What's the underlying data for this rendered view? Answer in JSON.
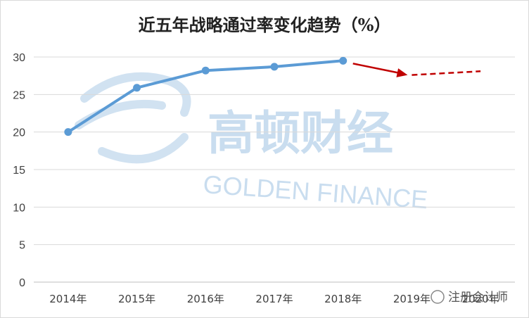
{
  "chart_data": {
    "type": "line",
    "title": "近五年战略通过率变化趋势（%）",
    "categories": [
      "2014年",
      "2015年",
      "2016年",
      "2017年",
      "2018年",
      "2019年",
      "2020年"
    ],
    "series": [
      {
        "values": [
          20,
          25.9,
          28.2,
          28.7,
          29.5,
          null,
          null
        ],
        "color": "#5b9bd5"
      },
      {
        "values": [
          null,
          null,
          null,
          null,
          null,
          27.6,
          28.1
        ],
        "color": "#c00000",
        "style": "dashed"
      }
    ],
    "ylim": [
      0,
      30
    ],
    "yticks": [
      "0",
      "5",
      "10",
      "15",
      "20",
      "25",
      "30"
    ],
    "grid": true,
    "legend": "none",
    "arrow_color": "#c00000"
  },
  "watermark": {
    "cn": "高顿财经",
    "en": "GOLDEN FINANCE",
    "color": "#bdd7ee"
  },
  "source_tag": {
    "text": "注册会计师"
  }
}
